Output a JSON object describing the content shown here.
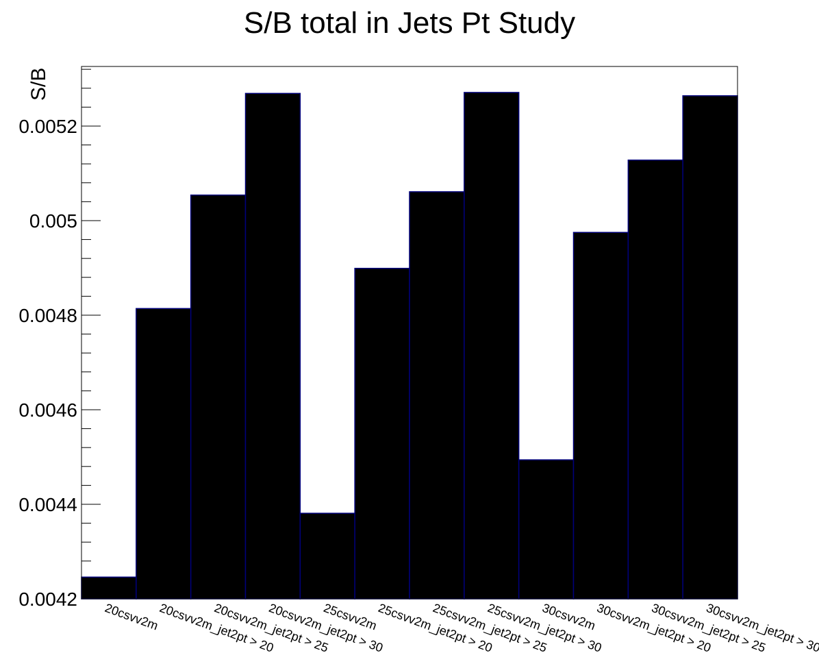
{
  "chart_data": {
    "type": "bar",
    "title": "S/B total in Jets Pt Study",
    "xlabel": "",
    "ylabel": "S/B",
    "categories": [
      "20csvv2m",
      "20csvv2m_jet2pt > 20",
      "20csvv2m_jet2pt > 25",
      "20csvv2m_jet2pt > 30",
      "25csvv2m",
      "25csvv2m_jet2pt > 20",
      "25csvv2m_jet2pt > 25",
      "25csvv2m_jet2pt > 30",
      "30csvv2m",
      "30csvv2m_jet2pt > 20",
      "30csvv2m_jet2pt > 25",
      "30csvv2m_jet2pt > 30"
    ],
    "values": [
      0.004246,
      0.004814,
      0.005054,
      0.005269,
      0.004381,
      0.004899,
      0.005061,
      0.005271,
      0.004494,
      0.004975,
      0.005128,
      0.005264
    ],
    "ylim": [
      0.0042,
      0.005326
    ],
    "yticks": [
      0.0042,
      0.0044,
      0.0046,
      0.0048,
      0.005,
      0.0052
    ],
    "ytick_labels": [
      "0.0042",
      "0.0044",
      "0.0046",
      "0.0048",
      "0.005",
      "0.0052"
    ],
    "bar_color": "#000000",
    "bar_edge_color": "#00007a",
    "grid": false,
    "legend": false
  }
}
